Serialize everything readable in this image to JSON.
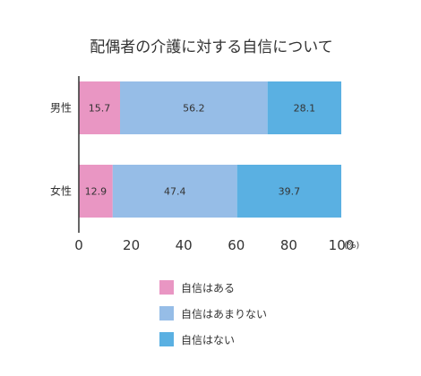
{
  "chart_data": {
    "type": "bar",
    "orientation": "horizontal",
    "stacked": true,
    "title": "配偶者の介護に対する自信について",
    "categories": [
      "男性",
      "女性"
    ],
    "series": [
      {
        "name": "自信はある",
        "values": [
          15.7,
          12.9
        ],
        "color": "#e996c3"
      },
      {
        "name": "自信はあまりない",
        "values": [
          56.2,
          47.4
        ],
        "color": "#96bde7"
      },
      {
        "name": "自信はない",
        "values": [
          28.1,
          39.7
        ],
        "color": "#5ab0e2"
      }
    ],
    "x_ticks": [
      "0",
      "20",
      "40",
      "60",
      "80",
      "100"
    ],
    "x_unit": "(%)",
    "xlim": [
      0,
      100
    ],
    "grid": false,
    "legend_position": "bottom"
  }
}
